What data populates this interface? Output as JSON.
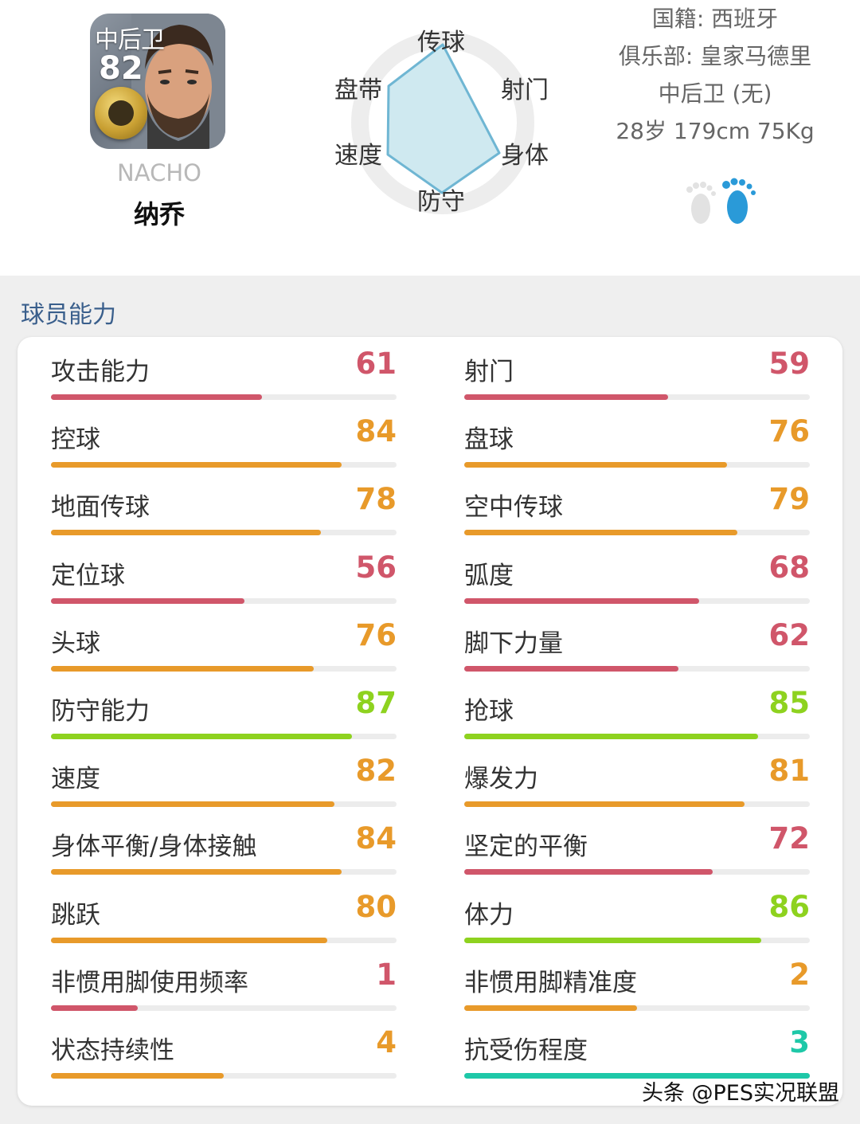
{
  "player": {
    "card_position": "中后卫",
    "card_rating": "82",
    "name_en": "NACHO",
    "name_cn": "纳乔"
  },
  "radar": {
    "labels": {
      "pass": "传球",
      "shoot": "射门",
      "dribble": "盘带",
      "physical": "身体",
      "speed": "速度",
      "defense": "防守"
    }
  },
  "info": {
    "nationality": "国籍: 西班牙",
    "club": "俱乐部: 皇家马德里",
    "position": "中后卫 (无)",
    "body": "28岁 179cm 75Kg"
  },
  "section": {
    "title": "球员能力"
  },
  "colors": {
    "red": "#d0566a",
    "orange": "#e89a2a",
    "green": "#8ed21f",
    "teal": "#1ec8a8"
  },
  "stats_left": [
    {
      "label": "攻击能力",
      "value": "61",
      "pct": 0.61,
      "color": "#d0566a"
    },
    {
      "label": "控球",
      "value": "84",
      "pct": 0.84,
      "color": "#e89a2a"
    },
    {
      "label": "地面传球",
      "value": "78",
      "pct": 0.78,
      "color": "#e89a2a"
    },
    {
      "label": "定位球",
      "value": "56",
      "pct": 0.56,
      "color": "#d0566a"
    },
    {
      "label": "头球",
      "value": "76",
      "pct": 0.76,
      "color": "#e89a2a"
    },
    {
      "label": "防守能力",
      "value": "87",
      "pct": 0.87,
      "color": "#8ed21f"
    },
    {
      "label": "速度",
      "value": "82",
      "pct": 0.82,
      "color": "#e89a2a"
    },
    {
      "label": "身体平衡/身体接触",
      "value": "84",
      "pct": 0.84,
      "color": "#e89a2a"
    },
    {
      "label": "跳跃",
      "value": "80",
      "pct": 0.8,
      "color": "#e89a2a"
    },
    {
      "label": "非惯用脚使用频率",
      "value": "1",
      "pct": 0.25,
      "color": "#d0566a"
    },
    {
      "label": "状态持续性",
      "value": "4",
      "pct": 0.5,
      "color": "#e89a2a"
    }
  ],
  "stats_right": [
    {
      "label": "射门",
      "value": "59",
      "pct": 0.59,
      "color": "#d0566a"
    },
    {
      "label": "盘球",
      "value": "76",
      "pct": 0.76,
      "color": "#e89a2a"
    },
    {
      "label": "空中传球",
      "value": "79",
      "pct": 0.79,
      "color": "#e89a2a"
    },
    {
      "label": "弧度",
      "value": "68",
      "pct": 0.68,
      "color": "#d0566a"
    },
    {
      "label": "脚下力量",
      "value": "62",
      "pct": 0.62,
      "color": "#d0566a"
    },
    {
      "label": "抢球",
      "value": "85",
      "pct": 0.85,
      "color": "#8ed21f"
    },
    {
      "label": "爆发力",
      "value": "81",
      "pct": 0.81,
      "color": "#e89a2a"
    },
    {
      "label": "坚定的平衡",
      "value": "72",
      "pct": 0.72,
      "color": "#d0566a"
    },
    {
      "label": "体力",
      "value": "86",
      "pct": 0.86,
      "color": "#8ed21f"
    },
    {
      "label": "非惯用脚精准度",
      "value": "2",
      "pct": 0.5,
      "color": "#e89a2a"
    },
    {
      "label": "抗受伤程度",
      "value": "3",
      "pct": 1.0,
      "color": "#1ec8a8"
    }
  ],
  "watermark": "头条 @PES实况联盟"
}
